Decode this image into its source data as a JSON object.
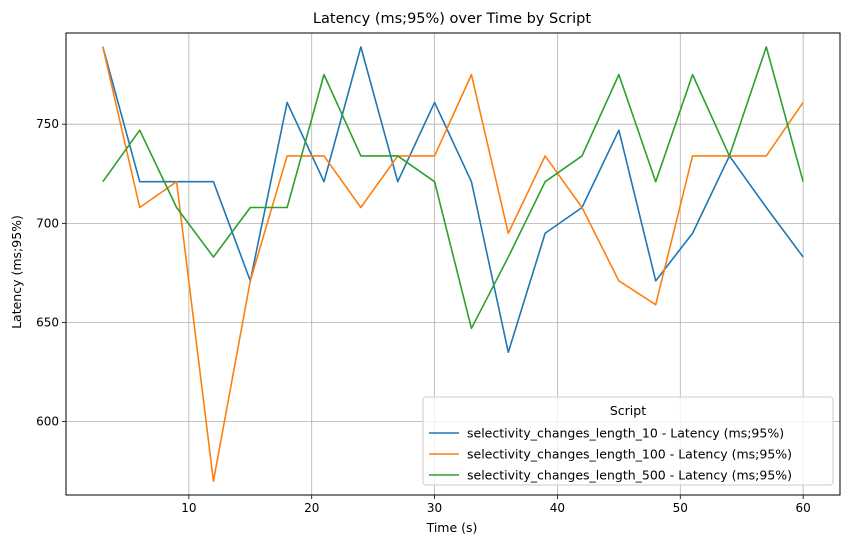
{
  "chart_data": {
    "type": "line",
    "title": "Latency (ms;95%) over Time by Script",
    "xlabel": "Time (s)",
    "ylabel": "Latency (ms;95%)",
    "xlim": [
      0,
      63
    ],
    "ylim": [
      563,
      796
    ],
    "xticks": [
      10,
      20,
      30,
      40,
      50,
      60
    ],
    "yticks": [
      600,
      650,
      700,
      750
    ],
    "grid": true,
    "legend": {
      "title": "Script",
      "placement": "lower-right"
    },
    "x": [
      3,
      6,
      9,
      12,
      15,
      18,
      21,
      24,
      27,
      30,
      33,
      36,
      39,
      42,
      45,
      48,
      51,
      54,
      57,
      60
    ],
    "series": [
      {
        "name": "selectivity_changes_length_10 - Latency (ms;95%)",
        "color": "#1f77b4",
        "values": [
          789,
          721,
          721,
          721,
          671,
          761,
          721,
          789,
          721,
          761,
          721,
          635,
          695,
          708,
          747,
          671,
          695,
          734,
          708,
          683
        ]
      },
      {
        "name": "selectivity_changes_length_100 - Latency (ms;95%)",
        "color": "#ff7f0e",
        "values": [
          789,
          708,
          721,
          570,
          671,
          734,
          734,
          708,
          734,
          734,
          775,
          695,
          734,
          708,
          671,
          659,
          734,
          734,
          734,
          761
        ]
      },
      {
        "name": "selectivity_changes_length_500 - Latency (ms;95%)",
        "color": "#2ca02c",
        "values": [
          721,
          747,
          708,
          683,
          708,
          708,
          775,
          734,
          734,
          721,
          647,
          683,
          721,
          734,
          775,
          721,
          775,
          734,
          789,
          721
        ]
      }
    ]
  }
}
